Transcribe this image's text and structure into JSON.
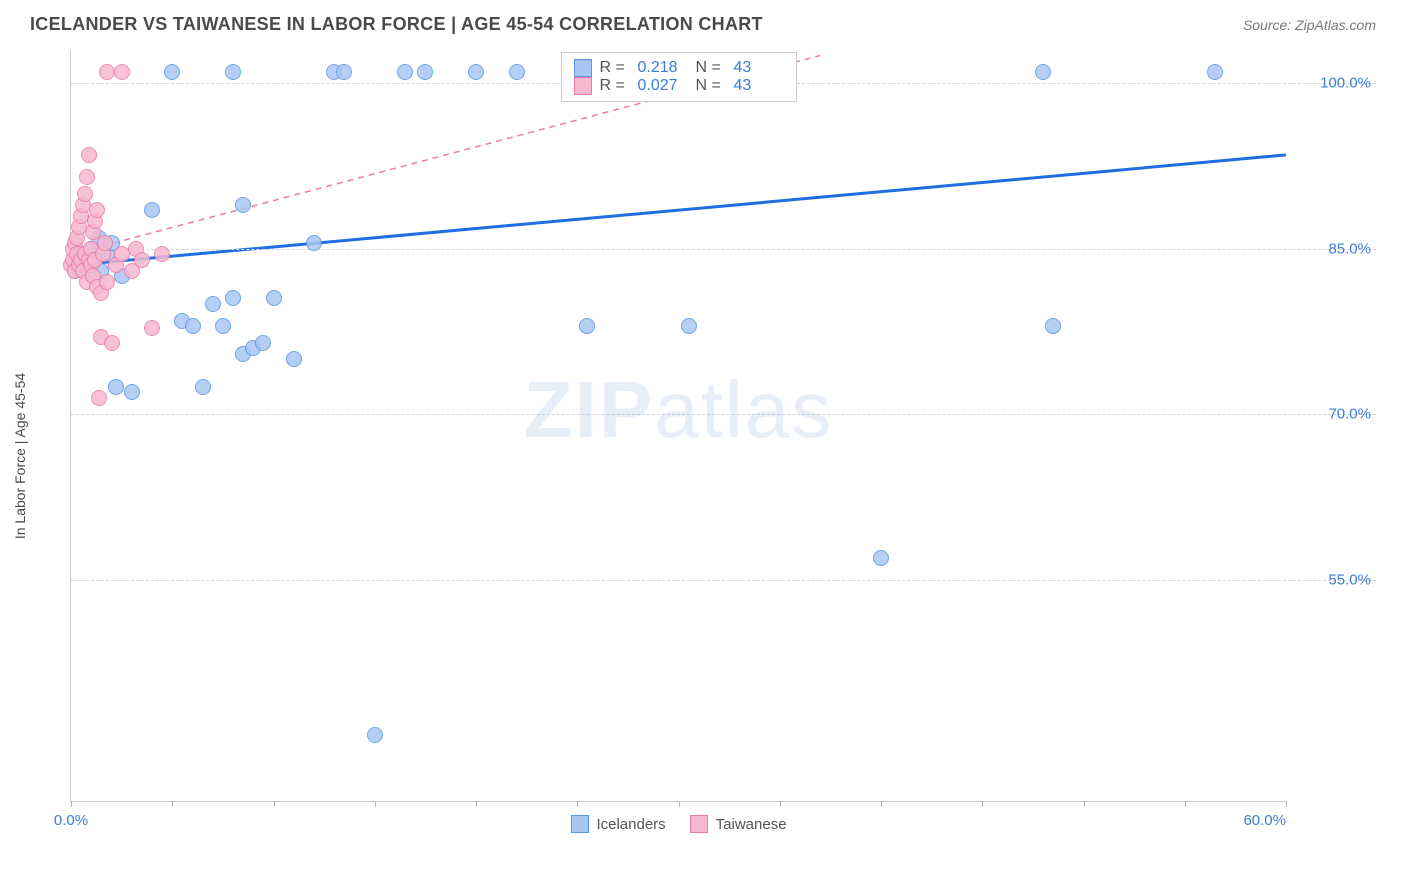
{
  "header": {
    "title": "ICELANDER VS TAIWANESE IN LABOR FORCE | AGE 45-54 CORRELATION CHART",
    "source": "Source: ZipAtlas.com"
  },
  "chart": {
    "type": "scatter",
    "ylabel": "In Labor Force | Age 45-54",
    "xlabel": "",
    "background_color": "#ffffff",
    "grid_color": "#d5d5d5",
    "grid_dash": "4,3",
    "axis_color": "#c8c8c8",
    "tick_label_color": "#3b7dd8",
    "tick_label_fontsize": 15,
    "axis_label_color": "#4a4a4a",
    "axis_label_fontsize": 14,
    "xlim": [
      0,
      60
    ],
    "ylim": [
      35,
      103
    ],
    "x_ticks": [
      0,
      5,
      10,
      15,
      20,
      25,
      30,
      35,
      40,
      45,
      50,
      55,
      60
    ],
    "x_tick_labels": {
      "0": "0.0%",
      "60": "60.0%"
    },
    "y_gridlines": [
      55,
      70,
      85,
      100
    ],
    "y_tick_labels": {
      "55": "55.0%",
      "70": "70.0%",
      "85": "85.0%",
      "100": "100.0%"
    },
    "marker_radius": 8,
    "marker_fill_opacity": 0.35,
    "marker_stroke_opacity": 0.9,
    "series": [
      {
        "name": "Icelanders",
        "color_fill": "#a7c7f2",
        "color_stroke": "#5a96e3",
        "R": "0.218",
        "N": "43",
        "trend": {
          "x1": 0,
          "y1": 83.5,
          "x2": 60,
          "y2": 93.5,
          "color": "#1f6fe0",
          "width": 3,
          "dash": "none"
        },
        "points": [
          [
            0.2,
            83.0
          ],
          [
            0.4,
            84.0
          ],
          [
            0.6,
            84.5
          ],
          [
            0.8,
            83.5
          ],
          [
            1.0,
            85.0
          ],
          [
            1.2,
            84.0
          ],
          [
            1.4,
            86.0
          ],
          [
            1.5,
            83.0
          ],
          [
            1.8,
            84.5
          ],
          [
            2.0,
            85.5
          ],
          [
            2.2,
            72.5
          ],
          [
            2.5,
            82.5
          ],
          [
            3.0,
            72.0
          ],
          [
            4.0,
            88.5
          ],
          [
            5.0,
            101.0
          ],
          [
            5.5,
            78.5
          ],
          [
            6.0,
            78.0
          ],
          [
            6.5,
            72.5
          ],
          [
            7.0,
            80.0
          ],
          [
            7.5,
            78.0
          ],
          [
            8.0,
            80.5
          ],
          [
            8.0,
            101.0
          ],
          [
            8.5,
            75.5
          ],
          [
            8.5,
            89.0
          ],
          [
            9.0,
            76.0
          ],
          [
            9.5,
            76.5
          ],
          [
            10.0,
            80.5
          ],
          [
            11.0,
            75.0
          ],
          [
            12.0,
            85.5
          ],
          [
            13.0,
            101.0
          ],
          [
            13.5,
            101.0
          ],
          [
            15.0,
            41.0
          ],
          [
            16.5,
            101.0
          ],
          [
            17.5,
            101.0
          ],
          [
            20.0,
            101.0
          ],
          [
            22.0,
            101.0
          ],
          [
            25.5,
            78.0
          ],
          [
            26.0,
            101.0
          ],
          [
            30.5,
            78.0
          ],
          [
            40.0,
            57.0
          ],
          [
            48.0,
            101.0
          ],
          [
            48.5,
            78.0
          ],
          [
            56.5,
            101.0
          ]
        ]
      },
      {
        "name": "Taiwanese",
        "color_fill": "#f6b8cf",
        "color_stroke": "#ec7ba8",
        "R": "0.027",
        "N": "43",
        "trend": {
          "x1": 0,
          "y1": 84.5,
          "x2": 37,
          "y2": 102.5,
          "color": "#ec7ba8",
          "width": 1.5,
          "dash": "6,5"
        },
        "points": [
          [
            0.0,
            83.5
          ],
          [
            0.1,
            84.0
          ],
          [
            0.1,
            85.0
          ],
          [
            0.2,
            83.0
          ],
          [
            0.2,
            85.5
          ],
          [
            0.3,
            84.5
          ],
          [
            0.3,
            86.0
          ],
          [
            0.4,
            83.5
          ],
          [
            0.4,
            87.0
          ],
          [
            0.5,
            84.0
          ],
          [
            0.5,
            88.0
          ],
          [
            0.6,
            83.0
          ],
          [
            0.6,
            89.0
          ],
          [
            0.7,
            84.5
          ],
          [
            0.7,
            90.0
          ],
          [
            0.8,
            82.0
          ],
          [
            0.8,
            91.5
          ],
          [
            0.9,
            84.0
          ],
          [
            0.9,
            93.5
          ],
          [
            1.0,
            83.5
          ],
          [
            1.0,
            85.0
          ],
          [
            1.1,
            82.5
          ],
          [
            1.1,
            86.5
          ],
          [
            1.2,
            84.0
          ],
          [
            1.2,
            87.5
          ],
          [
            1.3,
            81.5
          ],
          [
            1.3,
            88.5
          ],
          [
            1.4,
            71.5
          ],
          [
            1.5,
            77.0
          ],
          [
            1.5,
            81.0
          ],
          [
            1.6,
            84.5
          ],
          [
            1.7,
            85.5
          ],
          [
            1.8,
            101.0
          ],
          [
            1.8,
            82.0
          ],
          [
            2.0,
            76.5
          ],
          [
            2.2,
            83.5
          ],
          [
            2.5,
            84.5
          ],
          [
            2.5,
            101.0
          ],
          [
            3.0,
            83.0
          ],
          [
            3.2,
            85.0
          ],
          [
            3.5,
            84.0
          ],
          [
            4.0,
            77.8
          ],
          [
            4.5,
            84.5
          ]
        ]
      }
    ],
    "legend_top": {
      "border_color": "#cccccc",
      "bg_color": "#ffffff",
      "rows": [
        {
          "swatch_fill": "#a7c7f2",
          "swatch_stroke": "#5a96e3",
          "R_label": "R =",
          "R_val": "0.218",
          "N_label": "N =",
          "N_val": "43"
        },
        {
          "swatch_fill": "#f6b8cf",
          "swatch_stroke": "#ec7ba8",
          "R_label": "R =",
          "R_val": "0.027",
          "N_label": "N =",
          "N_val": "43"
        }
      ]
    },
    "legend_bottom": {
      "items": [
        {
          "label": "Icelanders",
          "swatch_fill": "#a7c7f2",
          "swatch_stroke": "#5a96e3"
        },
        {
          "label": "Taiwanese",
          "swatch_fill": "#f6b8cf",
          "swatch_stroke": "#ec7ba8"
        }
      ]
    },
    "watermark": {
      "text_bold": "ZIP",
      "text_light": "atlas",
      "color": "rgba(120,160,210,0.18)",
      "fontsize": 80
    }
  }
}
